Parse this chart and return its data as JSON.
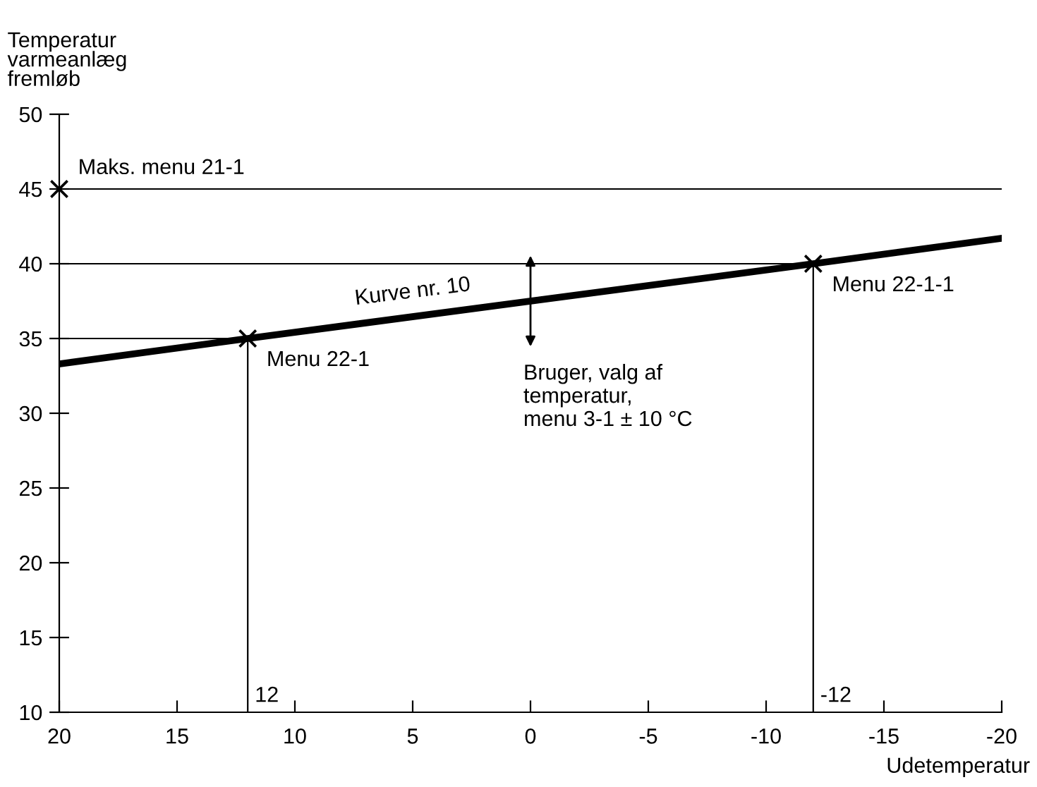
{
  "chart_data": {
    "type": "line",
    "ylabel": "Temperatur\nvarmeanlæg\nfremløb",
    "xlabel": "Udetemperatur",
    "xlim": [
      20,
      -20
    ],
    "xticks": [
      20,
      15,
      10,
      5,
      0,
      -5,
      -10,
      -15,
      -20
    ],
    "ylim": [
      10,
      50
    ],
    "yticks": [
      10,
      15,
      20,
      25,
      30,
      35,
      40,
      45,
      50
    ],
    "grid": false,
    "series": [
      {
        "name": "Kurve nr. 10",
        "color": "#000000",
        "x": [
          20,
          12,
          -12,
          -20
        ],
        "values": [
          33.3,
          35,
          40,
          41.7
        ]
      },
      {
        "color": "#000000",
        "x": [
          20,
          12,
          12
        ],
        "values": [
          35,
          35,
          10
        ]
      },
      {
        "color": "#000000",
        "x": [
          20,
          -12,
          -12
        ],
        "values": [
          40,
          40,
          10
        ]
      },
      {
        "type": "scatter",
        "marker": "cross",
        "color": "#000000",
        "x": [
          20,
          12,
          -12
        ],
        "values": [
          45,
          35,
          40
        ]
      }
    ],
    "ref_lines": [
      {
        "axis": "y",
        "value": 45,
        "label": "Maks. menu 21-1",
        "color": "#000000"
      }
    ],
    "annotations": [
      {
        "text": "Menu 22-1",
        "x": 12,
        "y": 35
      },
      {
        "text": "Menu 22-1-1",
        "x": -12,
        "y": 40
      },
      {
        "text": "12",
        "x": 12,
        "y": 10
      },
      {
        "text": "-12",
        "x": -12,
        "y": 10
      },
      {
        "text": "Bruger, valg af\ntemperatur,\nmenu 3-1 ± 10 °C",
        "x": 0,
        "y": 37.5
      }
    ]
  }
}
